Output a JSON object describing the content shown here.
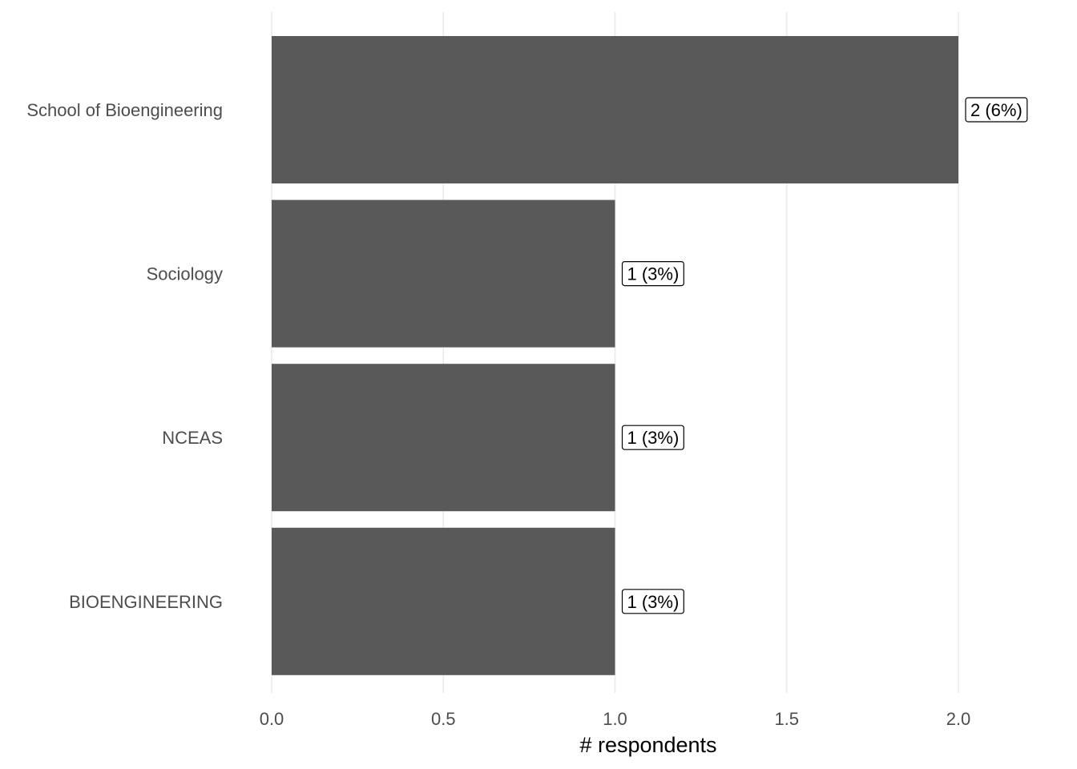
{
  "chart_data": {
    "type": "bar",
    "orientation": "horizontal",
    "categories": [
      "School of Bioengineering",
      "Sociology",
      "NCEAS",
      "BIOENGINEERING"
    ],
    "values": [
      2,
      1,
      1,
      1
    ],
    "data_labels": [
      "2 (6%)",
      "1 (3%)",
      "1 (3%)",
      "1 (3%)"
    ],
    "xlabel": "# respondents",
    "ylabel": "",
    "title": "",
    "xlim": [
      0,
      2
    ],
    "xticks": [
      0,
      0.5,
      1,
      1.5,
      2
    ],
    "xtick_labels": [
      "0.0",
      "0.5",
      "1.0",
      "1.5",
      "2.0"
    ],
    "grid": "vertical major",
    "legend": "none",
    "bar_color": "#595959"
  }
}
